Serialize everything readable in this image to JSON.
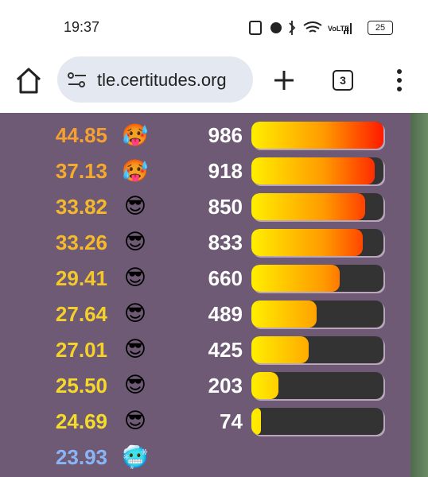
{
  "status_bar": {
    "time": "19:37",
    "battery": "25"
  },
  "browser": {
    "url": "tle.certitudes.org",
    "tab_count": "3"
  },
  "rows": [
    {
      "value": "44.85",
      "emoji": "🥵",
      "score": 986,
      "color": "#f5a030"
    },
    {
      "value": "37.13",
      "emoji": "🥵",
      "score": 918,
      "color": "#f5aa2e"
    },
    {
      "value": "33.82",
      "emoji": "😎",
      "score": 850,
      "color": "#f5b82c"
    },
    {
      "value": "33.26",
      "emoji": "😎",
      "score": 833,
      "color": "#f5ba2c"
    },
    {
      "value": "29.41",
      "emoji": "😎",
      "score": 660,
      "color": "#f5c82a"
    },
    {
      "value": "27.64",
      "emoji": "😎",
      "score": 489,
      "color": "#f5cf2a"
    },
    {
      "value": "27.01",
      "emoji": "😎",
      "score": 425,
      "color": "#f5d22a"
    },
    {
      "value": "25.50",
      "emoji": "😎",
      "score": 203,
      "color": "#f5d82a"
    },
    {
      "value": "24.69",
      "emoji": "😎",
      "score": 74,
      "color": "#f5dc2a"
    },
    {
      "value": "23.93",
      "emoji": "🥶",
      "color": "#8ab4f8"
    }
  ]
}
